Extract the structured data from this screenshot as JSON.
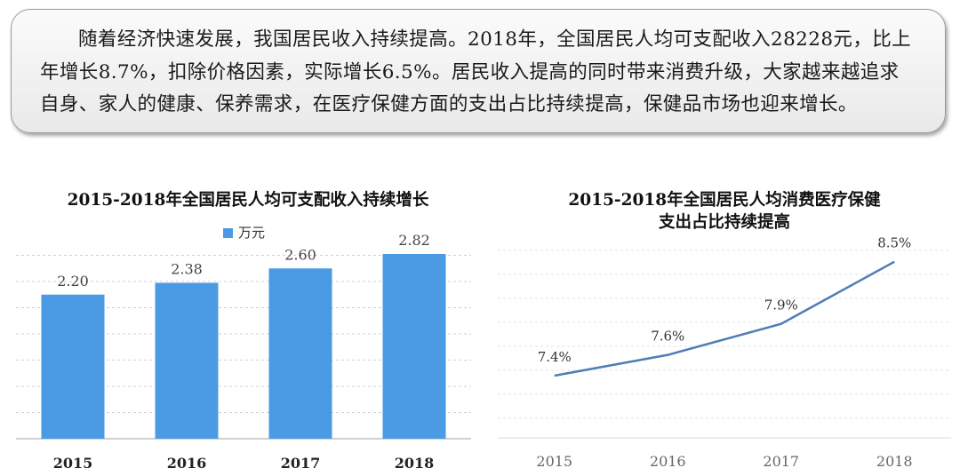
{
  "summary": {
    "text": "随着经济快速发展，我国居民收入持续提高。2018年，全国居民人均可支配收入28228元，比上年增长8.7%，扣除价格因素，实际增长6.5%。居民收入提高的同时带来消费升级，大家越来越追求自身、家人的健康、保养需求，在医疗保健方面的支出占比持续提高，保健品市场也迎来增长。"
  },
  "colors": {
    "bar": "#4a9be3",
    "line": "#4f7db5",
    "grid": "#d0d0d0",
    "axis": "#c0c0c0"
  },
  "chart_data": [
    {
      "type": "bar",
      "title": "2015-2018年全国居民人均可支配收入持续增长",
      "categories": [
        "2015",
        "2016",
        "2017",
        "2018"
      ],
      "series": [
        {
          "name": "万元",
          "values": [
            2.2,
            2.38,
            2.6,
            2.82
          ]
        }
      ],
      "data_labels": [
        "2.20",
        "2.38",
        "2.60",
        "2.82"
      ],
      "ylim": [
        0,
        3.2
      ],
      "grid": true,
      "legend": "top-center"
    },
    {
      "type": "line",
      "title": "2015-2018年全国居民人均消费医疗保健支出占比持续提高",
      "title_lines": [
        "2015-2018年全国居民人均消费医疗保健",
        "支出占比持续提高"
      ],
      "categories": [
        "2015",
        "2016",
        "2017",
        "2018"
      ],
      "series": [
        {
          "values": [
            7.4,
            7.6,
            7.9,
            8.5
          ]
        }
      ],
      "data_labels": [
        "7.4%",
        "7.6%",
        "7.9%",
        "8.5%"
      ],
      "unit": "%",
      "grid": true
    }
  ]
}
